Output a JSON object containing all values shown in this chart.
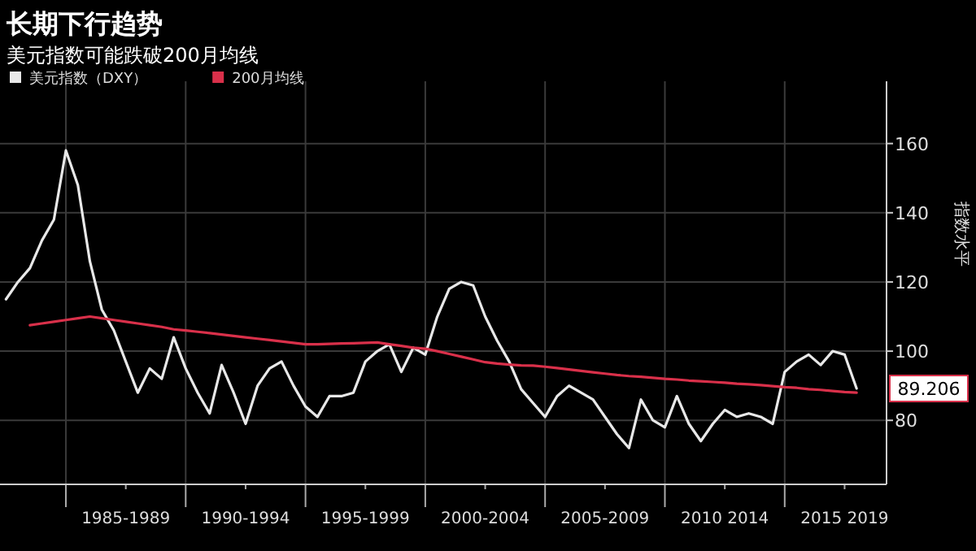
{
  "chart_data": {
    "type": "line",
    "title": "长期下行趋势",
    "subtitle": "美元指数可能跌破200月均线",
    "ylabel": "指数水平",
    "ylim": [
      61.5,
      178
    ],
    "yticks": [
      80,
      100,
      120,
      140,
      160
    ],
    "categories": [
      null,
      null,
      null,
      null,
      null,
      null,
      null,
      null,
      null,
      null,
      "1985-1989",
      null,
      null,
      null,
      null,
      null,
      null,
      null,
      null,
      null,
      "1990-1994",
      null,
      null,
      null,
      null,
      null,
      null,
      null,
      null,
      null,
      "1995-1999",
      null,
      null,
      null,
      null,
      null,
      null,
      null,
      null,
      null,
      "2000-2004",
      null,
      null,
      null,
      null,
      null,
      null,
      null,
      null,
      null,
      "2005-2009",
      null,
      null,
      null,
      null,
      null,
      null,
      null,
      null,
      null,
      "2010 2014",
      null,
      null,
      null,
      null,
      null,
      null,
      null,
      null,
      null,
      "2015 2019",
      null,
      null,
      null
    ],
    "grid": true,
    "legend": "top left",
    "annotations": [
      "89.206"
    ],
    "series": [
      {
        "name": "美元指数（DXY）",
        "color": "#e8e8e8",
        "values": [
          115,
          120,
          124,
          132,
          138,
          158,
          148,
          126,
          112,
          106,
          97,
          88,
          95,
          92,
          104,
          95,
          88,
          82,
          96,
          88,
          79,
          90,
          95,
          97,
          90,
          84,
          81,
          87,
          87,
          88,
          97,
          100,
          102,
          94,
          101,
          99,
          110,
          118,
          120,
          119,
          110,
          103,
          97,
          89,
          85,
          81,
          87,
          90,
          88,
          86,
          81,
          76,
          72,
          86,
          80,
          78,
          87,
          79,
          74,
          79,
          83,
          81,
          82,
          81,
          79,
          94,
          97,
          99,
          96,
          100,
          99,
          89.206,
          null,
          null
        ]
      },
      {
        "name": "200月均线",
        "color": "#d9304a",
        "values": [
          null,
          null,
          107.5,
          108,
          108.5,
          109,
          109.5,
          110,
          109.5,
          109,
          108.5,
          108,
          107.5,
          107,
          106.3,
          106,
          105.6,
          105.2,
          104.8,
          104.4,
          104,
          103.6,
          103.2,
          102.8,
          102.4,
          102,
          102,
          102.1,
          102.2,
          102.3,
          102.4,
          102.5,
          102,
          101.5,
          101,
          100.7,
          100,
          99.2,
          98.4,
          97.6,
          96.8,
          96.4,
          96.1,
          95.9,
          95.8,
          95.5,
          95.1,
          94.7,
          94.3,
          93.9,
          93.5,
          93.1,
          92.8,
          92.6,
          92.3,
          92,
          91.8,
          91.5,
          91.3,
          91.1,
          90.9,
          90.6,
          90.4,
          90.2,
          89.9,
          89.6,
          89.4,
          89,
          88.8,
          88.5,
          88.2,
          88,
          null,
          null
        ]
      }
    ]
  }
}
